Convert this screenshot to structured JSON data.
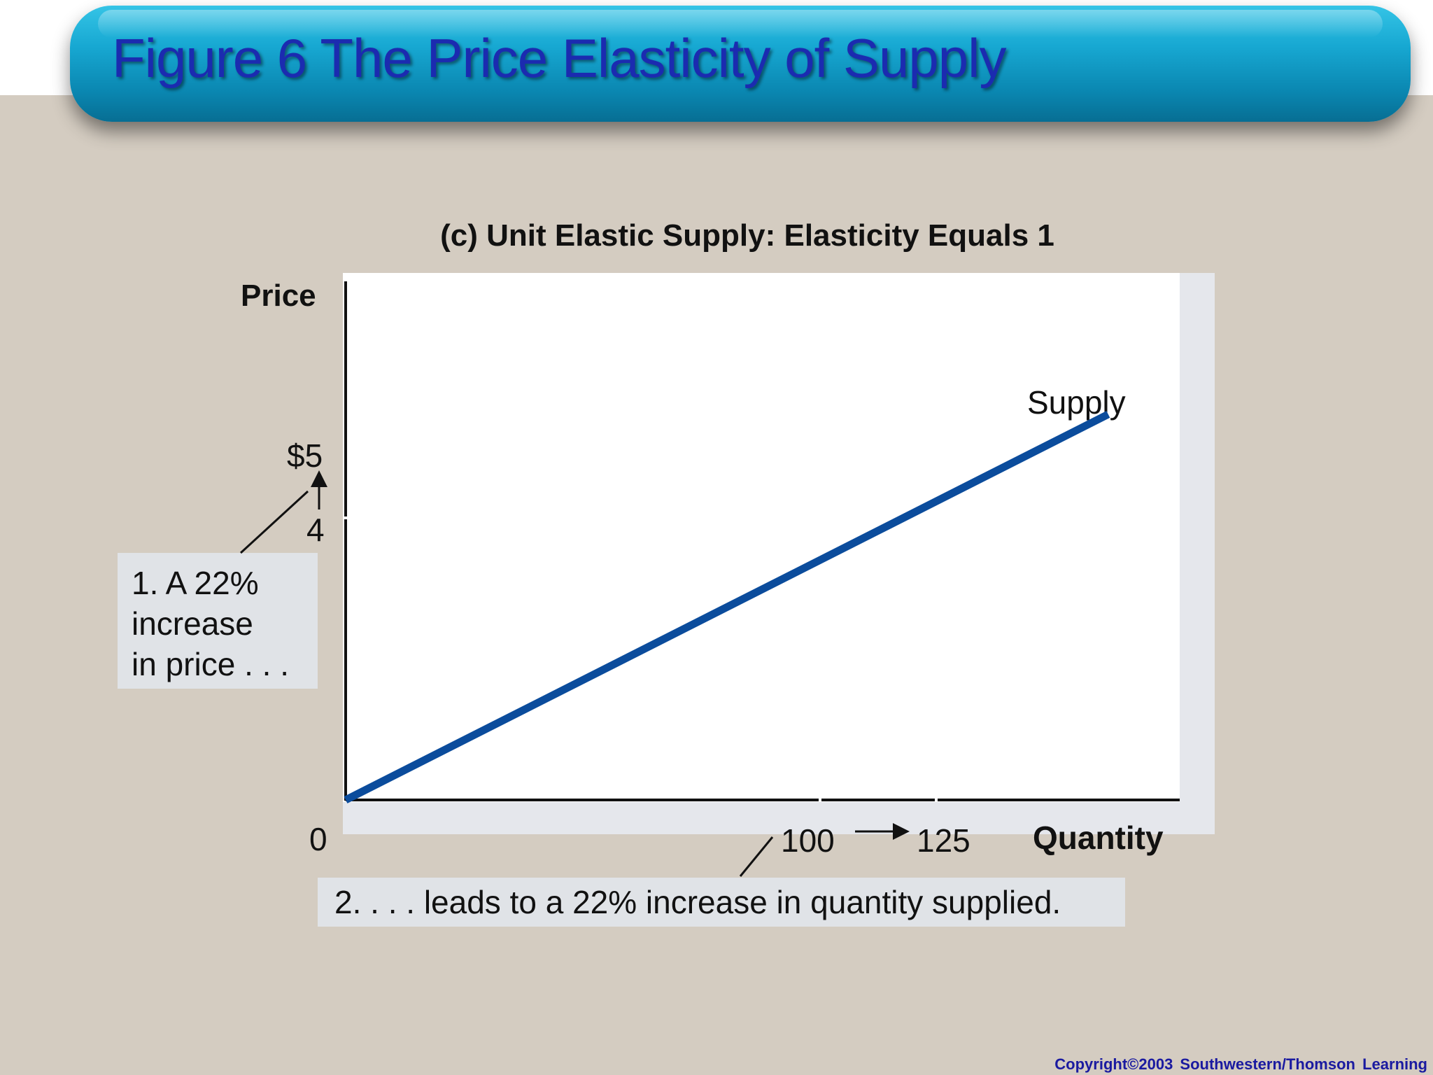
{
  "slide": {
    "title": "Figure 6 The Price Elasticity of Supply",
    "copyright": "Copyright©2003  Southwestern/Thomson Learning"
  },
  "chart_data": {
    "type": "line",
    "title": "(c) Unit Elastic Supply: Elasticity Equals 1",
    "xlabel": "Quantity",
    "ylabel": "Price",
    "origin_label": "0",
    "x_ticks": [
      {
        "value": 100,
        "label": "100"
      },
      {
        "value": 125,
        "label": "125"
      }
    ],
    "y_ticks": [
      {
        "value": 4,
        "label": "4"
      },
      {
        "value": 5,
        "label": "$5"
      }
    ],
    "xlim": [
      0,
      140
    ],
    "ylim": [
      0,
      7.8
    ],
    "series": [
      {
        "name": "Supply",
        "color": "#0b4c9c",
        "points": [
          [
            0,
            0
          ],
          [
            128,
            5.8
          ]
        ]
      }
    ],
    "annotations": [
      {
        "text_lines": [
          "1. A 22%",
          "increase",
          "in price . . ."
        ]
      },
      {
        "text": "2.  . . . leads to a 22% increase in quantity supplied."
      }
    ],
    "grid": false,
    "legend": "none"
  }
}
